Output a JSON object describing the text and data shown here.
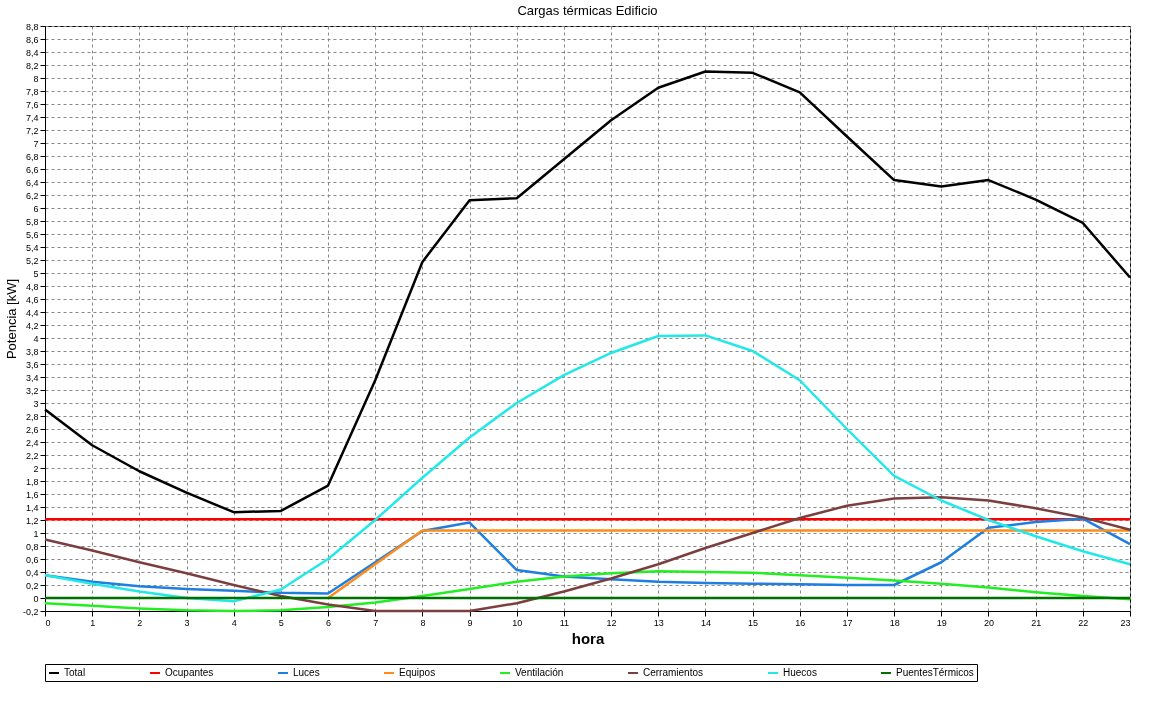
{
  "chart_data": {
    "type": "line",
    "title": "Cargas térmicas Edificio",
    "xlabel": "hora",
    "ylabel": "Potencia [kW]",
    "x": [
      0,
      1,
      2,
      3,
      4,
      5,
      6,
      7,
      8,
      9,
      10,
      11,
      12,
      13,
      14,
      15,
      16,
      17,
      18,
      19,
      20,
      21,
      22,
      23
    ],
    "xlim": [
      0,
      23
    ],
    "xticks": [
      0,
      1,
      2,
      3,
      4,
      5,
      6,
      7,
      8,
      9,
      10,
      11,
      12,
      13,
      14,
      15,
      16,
      17,
      18,
      19,
      20,
      21,
      22,
      23
    ],
    "ylim": [
      -0.2,
      8.8
    ],
    "yticks": [
      {
        "value": -0.2,
        "label": "-0,2"
      },
      0,
      {
        "value": 0.2,
        "label": "0,2"
      },
      {
        "value": 0.4,
        "label": "0,4"
      },
      {
        "value": 0.6,
        "label": "0,6"
      },
      {
        "value": 0.8,
        "label": "0,8"
      },
      1,
      {
        "value": 1.2,
        "label": "1,2"
      },
      {
        "value": 1.4,
        "label": "1,4"
      },
      {
        "value": 1.6,
        "label": "1,6"
      },
      {
        "value": 1.8,
        "label": "1,8"
      },
      2,
      {
        "value": 2.2,
        "label": "2,2"
      },
      {
        "value": 2.4,
        "label": "2,4"
      },
      {
        "value": 2.6,
        "label": "2,6"
      },
      {
        "value": 2.8,
        "label": "2,8"
      },
      3,
      {
        "value": 3.2,
        "label": "3,2"
      },
      {
        "value": 3.4,
        "label": "3,4"
      },
      {
        "value": 3.6,
        "label": "3,6"
      },
      {
        "value": 3.8,
        "label": "3,8"
      },
      4,
      {
        "value": 4.2,
        "label": "4,2"
      },
      {
        "value": 4.4,
        "label": "4,4"
      },
      {
        "value": 4.6,
        "label": "4,6"
      },
      {
        "value": 4.8,
        "label": "4,8"
      },
      5,
      {
        "value": 5.2,
        "label": "5,2"
      },
      {
        "value": 5.4,
        "label": "5,4"
      },
      {
        "value": 5.6,
        "label": "5,6"
      },
      {
        "value": 5.8,
        "label": "5,8"
      },
      6,
      {
        "value": 6.2,
        "label": "6,2"
      },
      {
        "value": 6.4,
        "label": "6,4"
      },
      {
        "value": 6.6,
        "label": "6,6"
      },
      {
        "value": 6.8,
        "label": "6,8"
      },
      7,
      {
        "value": 7.2,
        "label": "7,2"
      },
      {
        "value": 7.4,
        "label": "7,4"
      },
      {
        "value": 7.6,
        "label": "7,6"
      },
      {
        "value": 7.8,
        "label": "7,8"
      },
      8,
      {
        "value": 8.2,
        "label": "8,2"
      },
      {
        "value": 8.4,
        "label": "8,4"
      },
      {
        "value": 8.6,
        "label": "8,6"
      },
      {
        "value": 8.8,
        "label": "8,8"
      }
    ],
    "grid": true,
    "legend": "bottom",
    "marker": "none",
    "line_style": "solid",
    "series": [
      {
        "name": "Total",
        "color": "#000000",
        "values": [
          2.9,
          2.35,
          1.95,
          1.62,
          1.32,
          1.34,
          1.73,
          3.35,
          5.17,
          6.12,
          6.15,
          6.75,
          7.35,
          7.85,
          8.1,
          8.08,
          7.78,
          7.1,
          6.43,
          6.33,
          6.43,
          6.13,
          5.77,
          4.93
        ]
      },
      {
        "name": "Ocupantes",
        "color": "#ff0000",
        "values": [
          1.21,
          1.21,
          1.21,
          1.21,
          1.21,
          1.21,
          1.21,
          1.21,
          1.21,
          1.21,
          1.21,
          1.21,
          1.21,
          1.21,
          1.21,
          1.21,
          1.21,
          1.21,
          1.21,
          1.21,
          1.21,
          1.21,
          1.21,
          1.21
        ]
      },
      {
        "name": "Luces",
        "color": "#1e7fe0",
        "values": [
          0.35,
          0.25,
          0.18,
          0.14,
          0.11,
          0.08,
          0.07,
          0.55,
          1.03,
          1.16,
          0.43,
          0.33,
          0.29,
          0.25,
          0.23,
          0.22,
          0.21,
          0.2,
          0.2,
          0.55,
          1.08,
          1.17,
          1.22,
          0.83
        ]
      },
      {
        "name": "Equipos",
        "color": "#ff8c1a",
        "values": [
          null,
          null,
          null,
          null,
          null,
          null,
          0,
          0.52,
          1.04,
          1.04,
          1.04,
          1.04,
          1.04,
          1.04,
          1.04,
          1.04,
          1.04,
          1.04,
          1.04,
          1.04,
          1.04,
          1.04,
          1.04,
          1.04
        ]
      },
      {
        "name": "Ventilación",
        "color": "#22ee22",
        "values": [
          -0.08,
          -0.12,
          -0.16,
          -0.19,
          -0.2,
          -0.19,
          -0.14,
          -0.07,
          0.03,
          0.14,
          0.25,
          0.33,
          0.38,
          0.41,
          0.4,
          0.39,
          0.35,
          0.31,
          0.27,
          0.22,
          0.16,
          0.09,
          0.03,
          -0.02
        ]
      },
      {
        "name": "Cerramientos",
        "color": "#7b3f3f",
        "values": [
          0.9,
          0.73,
          0.55,
          0.38,
          0.2,
          0.03,
          -0.1,
          -0.2,
          -0.2,
          -0.2,
          -0.08,
          0.1,
          0.3,
          0.52,
          0.77,
          1.0,
          1.23,
          1.42,
          1.53,
          1.55,
          1.5,
          1.38,
          1.24,
          1.05
        ]
      },
      {
        "name": "Huecos",
        "color": "#22e8e8",
        "values": [
          0.35,
          0.22,
          0.1,
          0.0,
          -0.05,
          0.13,
          0.6,
          1.2,
          1.85,
          2.47,
          3.0,
          3.43,
          3.77,
          4.03,
          4.04,
          3.8,
          3.35,
          2.6,
          1.88,
          1.5,
          1.2,
          0.95,
          0.72,
          0.52
        ]
      },
      {
        "name": "PuentesTérmicos",
        "color": "#007000",
        "values": [
          0,
          0,
          0,
          0,
          0,
          0,
          0,
          0,
          0,
          0,
          0,
          0,
          0,
          0,
          0,
          0,
          0,
          0,
          0,
          0,
          0,
          0,
          0,
          0
        ]
      }
    ]
  }
}
